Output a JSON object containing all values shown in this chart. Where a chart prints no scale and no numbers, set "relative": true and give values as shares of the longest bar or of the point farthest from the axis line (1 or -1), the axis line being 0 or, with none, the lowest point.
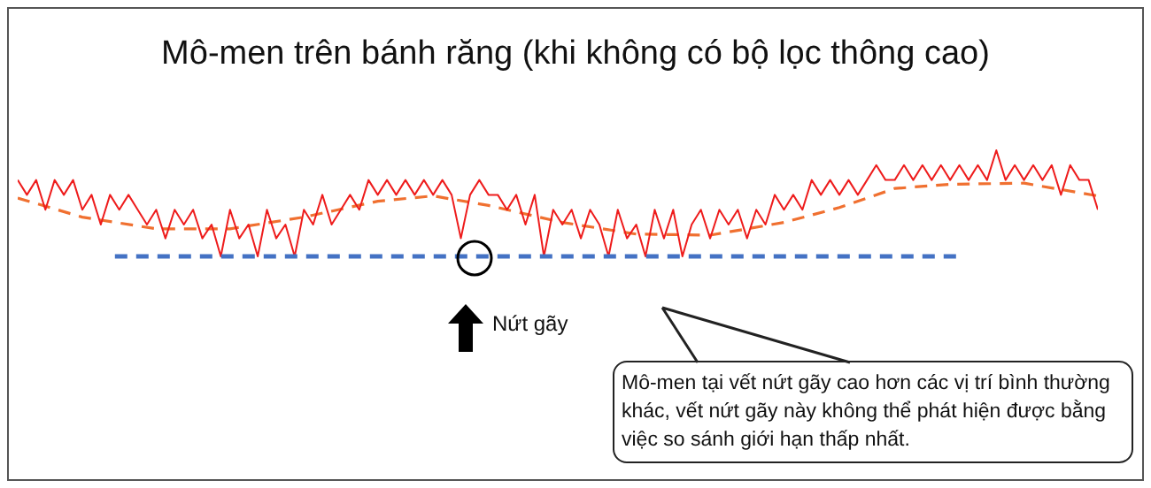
{
  "chart_data": {
    "type": "line",
    "title": "Mô-men trên bánh răng (khi không có bộ lọc thông cao)",
    "relative": true,
    "legend": false,
    "marker": "none",
    "categories": [
      null,
      null,
      null,
      null,
      null,
      null,
      null,
      null,
      null,
      null,
      null,
      null,
      null,
      null,
      null,
      null,
      null,
      null,
      null,
      null,
      null,
      null,
      null,
      null,
      null,
      null,
      null,
      null,
      null,
      null,
      null,
      null,
      null,
      null,
      null,
      null,
      null,
      null,
      null,
      null,
      null,
      null,
      null,
      null,
      null,
      null,
      null,
      null,
      null,
      null,
      null,
      null,
      null,
      null,
      null,
      null,
      null,
      null,
      null,
      null,
      null,
      null,
      null,
      null,
      null,
      null,
      null,
      null,
      null,
      null,
      null,
      null,
      null,
      null,
      null,
      null,
      null,
      null,
      null,
      null,
      null,
      null,
      null,
      null,
      null,
      null,
      null,
      null,
      null,
      null,
      null,
      null,
      null,
      null,
      null,
      null,
      null,
      null,
      null,
      null,
      null,
      null,
      null,
      null,
      null,
      null,
      null,
      null,
      null,
      null,
      null,
      null,
      null,
      null,
      null,
      null,
      null,
      null
    ],
    "series": [
      {
        "color": "#ee1c1c",
        "line_style": "solid",
        "values": [
          0.72,
          0.58,
          0.72,
          0.44,
          0.72,
          0.58,
          0.72,
          0.44,
          0.58,
          0.3,
          0.58,
          0.44,
          0.58,
          0.44,
          0.3,
          0.44,
          0.17,
          0.44,
          0.3,
          0.44,
          0.17,
          0.3,
          0,
          0.44,
          0.17,
          0.3,
          0,
          0.44,
          0.17,
          0.3,
          0,
          0.44,
          0.3,
          0.58,
          0.3,
          0.44,
          0.58,
          0.44,
          0.72,
          0.58,
          0.72,
          0.58,
          0.72,
          0.58,
          0.72,
          0.58,
          0.72,
          0.58,
          0.17,
          0.58,
          0.72,
          0.58,
          0.58,
          0.44,
          0.58,
          0.3,
          0.58,
          0,
          0.44,
          0.3,
          0.44,
          0.17,
          0.44,
          0.3,
          0,
          0.44,
          0.17,
          0.3,
          0,
          0.44,
          0.17,
          0.44,
          0,
          0.3,
          0.44,
          0.17,
          0.44,
          0.3,
          0.44,
          0.17,
          0.44,
          0.3,
          0.58,
          0.44,
          0.58,
          0.44,
          0.72,
          0.58,
          0.72,
          0.58,
          0.72,
          0.58,
          0.72,
          0.86,
          0.72,
          0.72,
          0.86,
          0.72,
          0.86,
          0.72,
          0.86,
          0.72,
          0.86,
          0.72,
          0.86,
          0.72,
          1.0,
          0.72,
          0.86,
          0.72,
          0.86,
          0.72,
          0.86,
          0.58,
          0.86,
          0.72,
          0.72,
          0.44
        ]
      },
      {
        "color": "#f07030",
        "line_style": "dashed",
        "values": [
          0.55,
          null,
          null,
          null,
          null,
          null,
          null,
          0.37,
          null,
          null,
          null,
          null,
          null,
          null,
          null,
          0.26,
          null,
          null,
          null,
          null,
          null,
          null,
          null,
          0.26,
          null,
          null,
          null,
          null,
          null,
          null,
          null,
          0.37,
          null,
          null,
          null,
          null,
          null,
          null,
          null,
          0.52,
          null,
          null,
          null,
          null,
          null,
          0.57,
          null,
          null,
          null,
          null,
          null,
          0.48,
          null,
          null,
          null,
          null,
          null,
          null,
          null,
          0.32,
          null,
          null,
          null,
          null,
          null,
          null,
          null,
          0.21,
          null,
          null,
          null,
          null,
          null,
          null,
          null,
          0.2,
          null,
          null,
          null,
          null,
          null,
          null,
          null,
          0.32,
          null,
          null,
          null,
          null,
          null,
          0.46,
          null,
          null,
          null,
          null,
          null,
          0.64,
          null,
          null,
          null,
          null,
          null,
          0.68,
          null,
          null,
          null,
          null,
          null,
          null,
          null,
          0.69,
          null,
          null,
          null,
          null,
          null,
          null,
          null,
          0.57
        ]
      }
    ],
    "ref_lines": [
      {
        "axis": "y",
        "value": 0,
        "color": "#4472c4",
        "line_style": "dashed"
      }
    ],
    "annotations": [
      "Nứt gãy",
      "Mô-men tại vết nứt gãy cao hơn các vị trí bình thường khác, vết nứt gãy này không thể phát hiện được bằng  việc so sánh giới hạn thấp nhất."
    ]
  }
}
